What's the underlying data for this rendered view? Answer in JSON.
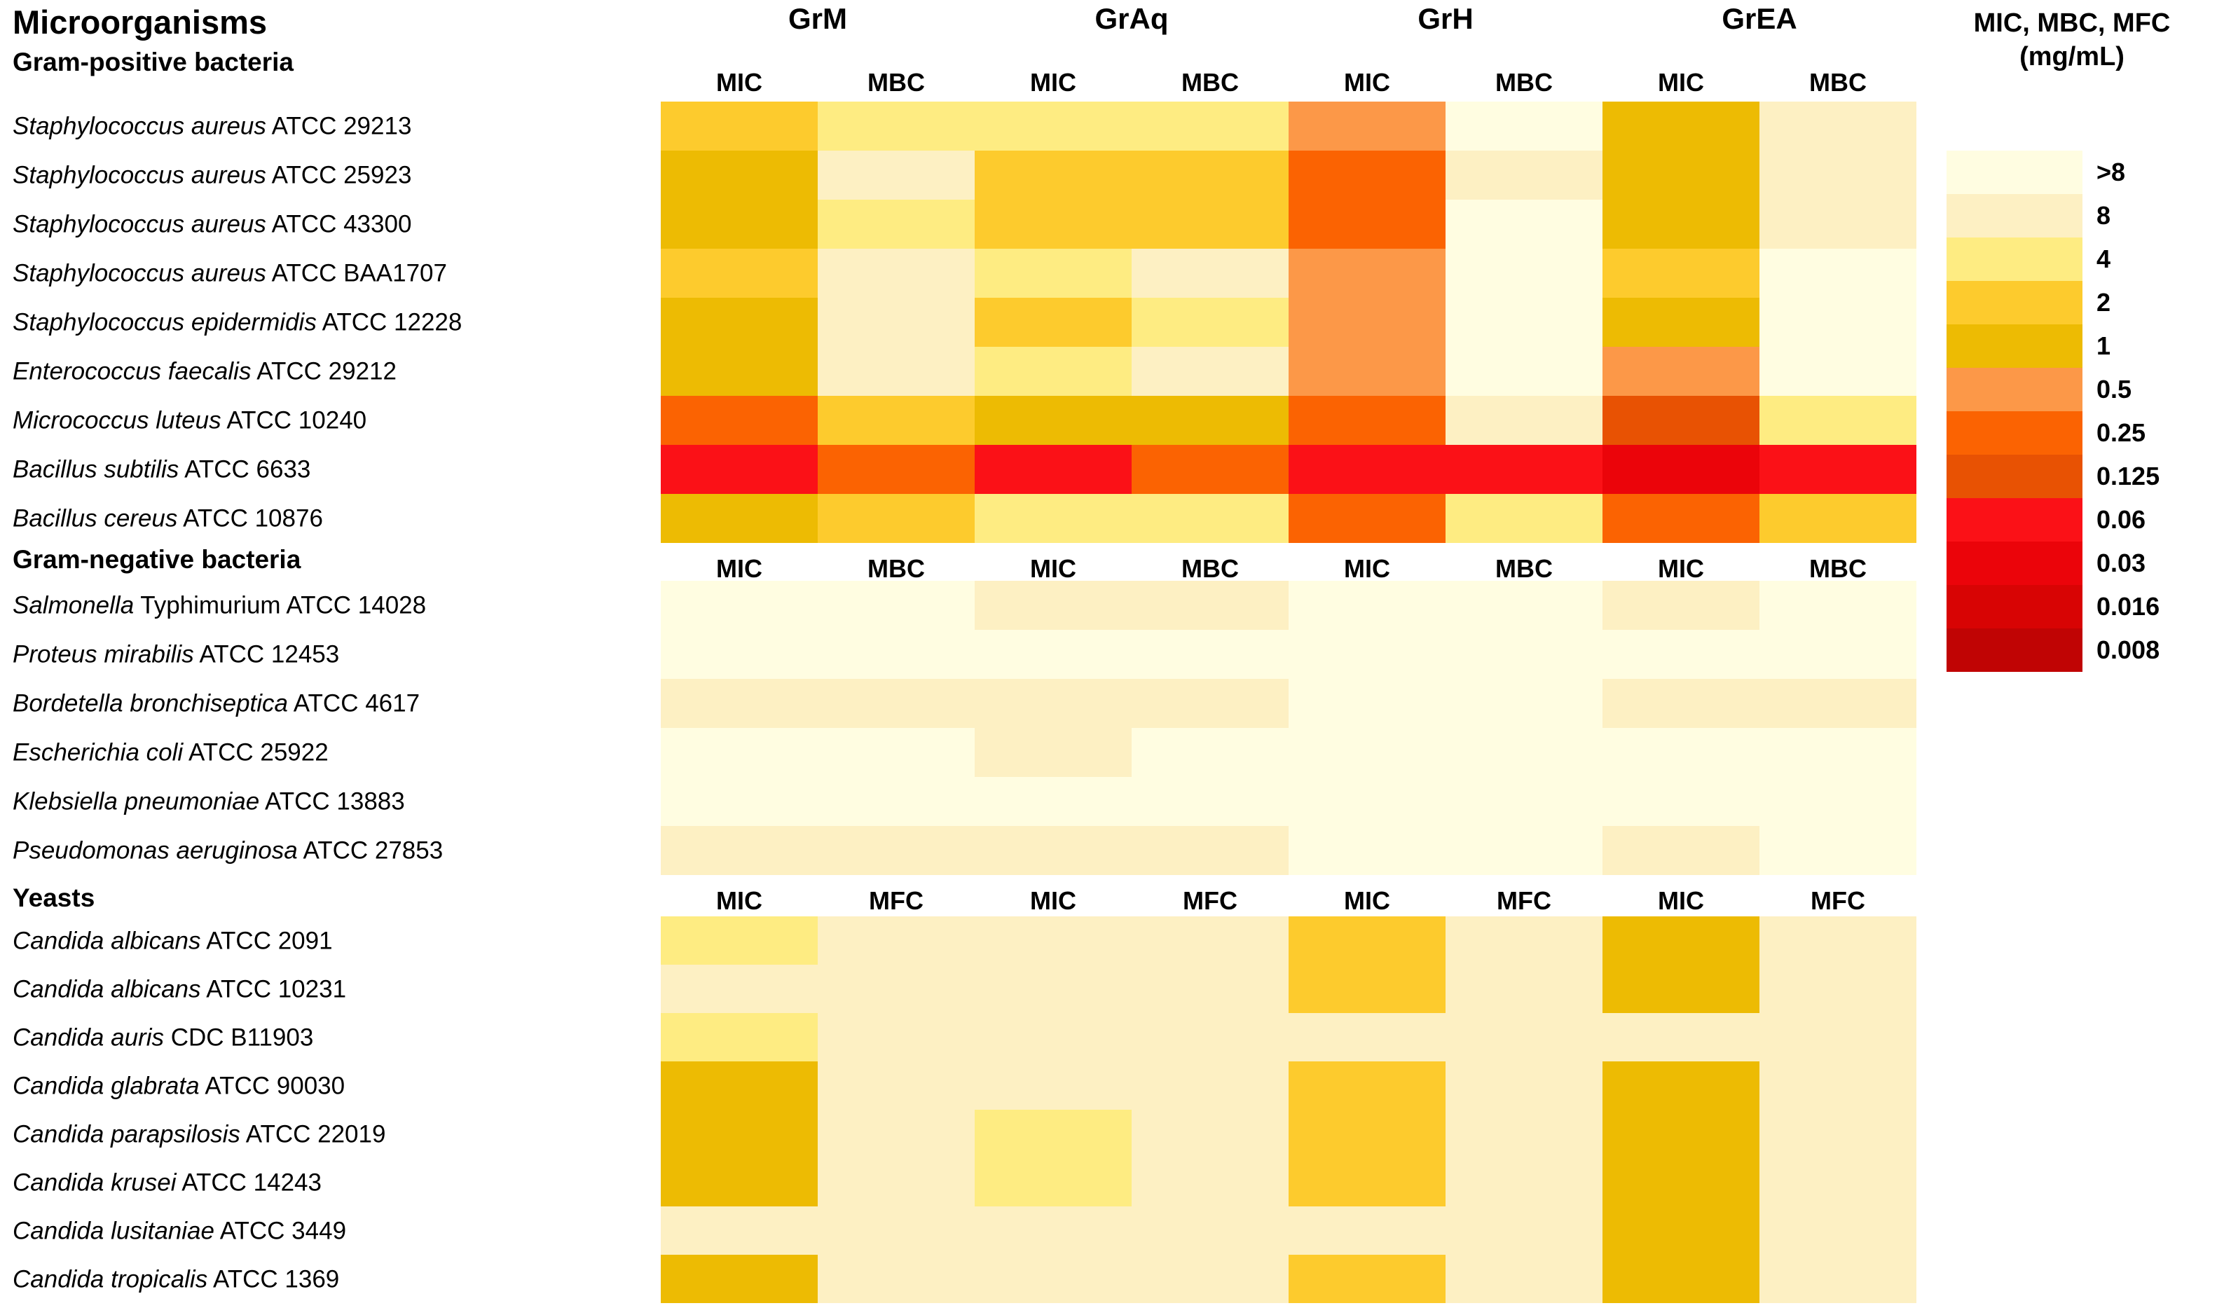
{
  "page_title": "Microorganisms",
  "legend": {
    "title_line1": "MIC, MBC, MFC",
    "title_line2": "(mg/mL)",
    "entries": [
      {
        "label": ">8",
        "color": "#FFFDE1"
      },
      {
        "label": "8",
        "color": "#FDF0C3"
      },
      {
        "label": "4",
        "color": "#FEEC82"
      },
      {
        "label": "2",
        "color": "#FDCB2D"
      },
      {
        "label": "1",
        "color": "#EDBB03"
      },
      {
        "label": "0.5",
        "color": "#FC9848"
      },
      {
        "label": "0.25",
        "color": "#FB6302"
      },
      {
        "label": "0.125",
        "color": "#E85203"
      },
      {
        "label": "0.06",
        "color": "#FB1117"
      },
      {
        "label": "0.03",
        "color": "#EB040A"
      },
      {
        "label": "0.016",
        "color": "#D80404"
      },
      {
        "label": "0.008",
        "color": "#C00404"
      }
    ]
  },
  "chart_data": {
    "type": "heatmap",
    "unit": "mg/mL",
    "column_groups": [
      "GrM",
      "GrAq",
      "GrH",
      "GrEA"
    ],
    "value_scale": [
      ">8",
      "8",
      "4",
      "2",
      "1",
      "0.5",
      "0.25",
      "0.125",
      "0.06",
      "0.03",
      "0.016",
      "0.008"
    ],
    "sections": [
      {
        "name": "Gram-positive bacteria",
        "column_labels": [
          "MIC",
          "MBC",
          "MIC",
          "MBC",
          "MIC",
          "MBC",
          "MIC",
          "MBC"
        ],
        "rows": [
          {
            "species": "Staphylococcus aureus",
            "strain": "ATCC 29213",
            "values": [
              "2",
              "4",
              "4",
              "4",
              "0.5",
              ">8",
              "1",
              "8"
            ]
          },
          {
            "species": "Staphylococcus aureus",
            "strain": "ATCC 25923",
            "values": [
              "1",
              "8",
              "2",
              "2",
              "0.25",
              "8",
              "1",
              "8"
            ]
          },
          {
            "species": "Staphylococcus aureus",
            "strain": "ATCC 43300",
            "values": [
              "1",
              "4",
              "2",
              "2",
              "0.25",
              ">8",
              "1",
              "8"
            ]
          },
          {
            "species": "Staphylococcus aureus",
            "strain": "ATCC BAA1707",
            "values": [
              "2",
              "8",
              "4",
              "8",
              "0.5",
              ">8",
              "2",
              ">8"
            ]
          },
          {
            "species": "Staphylococcus epidermidis",
            "strain": "ATCC 12228",
            "values": [
              "1",
              "8",
              "2",
              "4",
              "0.5",
              ">8",
              "1",
              ">8"
            ]
          },
          {
            "species": "Enterococcus faecalis",
            "strain": "ATCC 29212",
            "values": [
              "1",
              "8",
              "4",
              "8",
              "0.5",
              ">8",
              "0.5",
              ">8"
            ]
          },
          {
            "species": "Micrococcus luteus",
            "strain": "ATCC 10240",
            "values": [
              "0.25",
              "2",
              "1",
              "1",
              "0.25",
              "8",
              "0.125",
              "4"
            ]
          },
          {
            "species": "Bacillus subtilis",
            "strain": "ATCC 6633",
            "values": [
              "0.06",
              "0.25",
              "0.06",
              "0.25",
              "0.06",
              "0.06",
              "0.03",
              "0.06"
            ]
          },
          {
            "species": "Bacillus cereus",
            "strain": "ATCC 10876",
            "values": [
              "1",
              "2",
              "4",
              "4",
              "0.25",
              "4",
              "0.25",
              "2"
            ]
          }
        ]
      },
      {
        "name": "Gram-negative bacteria",
        "column_labels": [
          "MIC",
          "MBC",
          "MIC",
          "MBC",
          "MIC",
          "MBC",
          "MIC",
          "MBC"
        ],
        "rows": [
          {
            "species": "Salmonella",
            "strain": "Typhimurium ATCC 14028",
            "values": [
              ">8",
              ">8",
              "8",
              "8",
              ">8",
              ">8",
              "8",
              ">8"
            ]
          },
          {
            "species": "Proteus mirabilis",
            "strain": "ATCC 12453",
            "values": [
              ">8",
              ">8",
              ">8",
              ">8",
              ">8",
              ">8",
              ">8",
              ">8"
            ]
          },
          {
            "species": "Bordetella bronchiseptica",
            "strain": "ATCC 4617",
            "values": [
              "8",
              "8",
              "8",
              "8",
              ">8",
              ">8",
              "8",
              "8"
            ]
          },
          {
            "species": "Escherichia coli",
            "strain": "ATCC 25922",
            "values": [
              ">8",
              ">8",
              "8",
              ">8",
              ">8",
              ">8",
              ">8",
              ">8"
            ]
          },
          {
            "species": "Klebsiella pneumoniae",
            "strain": "ATCC 13883",
            "values": [
              ">8",
              ">8",
              ">8",
              ">8",
              ">8",
              ">8",
              ">8",
              ">8"
            ]
          },
          {
            "species": "Pseudomonas aeruginosa",
            "strain": "ATCC 27853",
            "values": [
              "8",
              "8",
              "8",
              "8",
              ">8",
              ">8",
              "8",
              ">8"
            ]
          }
        ]
      },
      {
        "name": "Yeasts",
        "column_labels": [
          "MIC",
          "MFC",
          "MIC",
          "MFC",
          "MIC",
          "MFC",
          "MIC",
          "MFC"
        ],
        "rows": [
          {
            "species": "Candida albicans",
            "strain": "ATCC 2091",
            "values": [
              "4",
              "8",
              "8",
              "8",
              "2",
              "8",
              "1",
              "8"
            ]
          },
          {
            "species": "Candida albicans",
            "strain": "ATCC 10231",
            "values": [
              "8",
              "8",
              "8",
              "8",
              "2",
              "8",
              "1",
              "8"
            ]
          },
          {
            "species": "Candida auris",
            "strain": "CDC B11903",
            "values": [
              "4",
              "8",
              "8",
              "8",
              "8",
              "8",
              "8",
              "8"
            ]
          },
          {
            "species": "Candida glabrata",
            "strain": "ATCC 90030",
            "values": [
              "1",
              "8",
              "8",
              "8",
              "2",
              "8",
              "1",
              "8"
            ]
          },
          {
            "species": "Candida parapsilosis",
            "strain": "ATCC 22019",
            "values": [
              "1",
              "8",
              "4",
              "8",
              "2",
              "8",
              "1",
              "8"
            ]
          },
          {
            "species": "Candida krusei",
            "strain": "ATCC 14243",
            "values": [
              "1",
              "8",
              "4",
              "8",
              "2",
              "8",
              "1",
              "8"
            ]
          },
          {
            "species": "Candida lusitaniae",
            "strain": "ATCC 3449",
            "values": [
              "8",
              "8",
              "8",
              "8",
              "8",
              "8",
              "1",
              "8"
            ]
          },
          {
            "species": "Candida tropicalis",
            "strain": "ATCC 1369",
            "values": [
              "1",
              "8",
              "8",
              "8",
              "2",
              "8",
              "1",
              "8"
            ]
          }
        ]
      }
    ]
  }
}
